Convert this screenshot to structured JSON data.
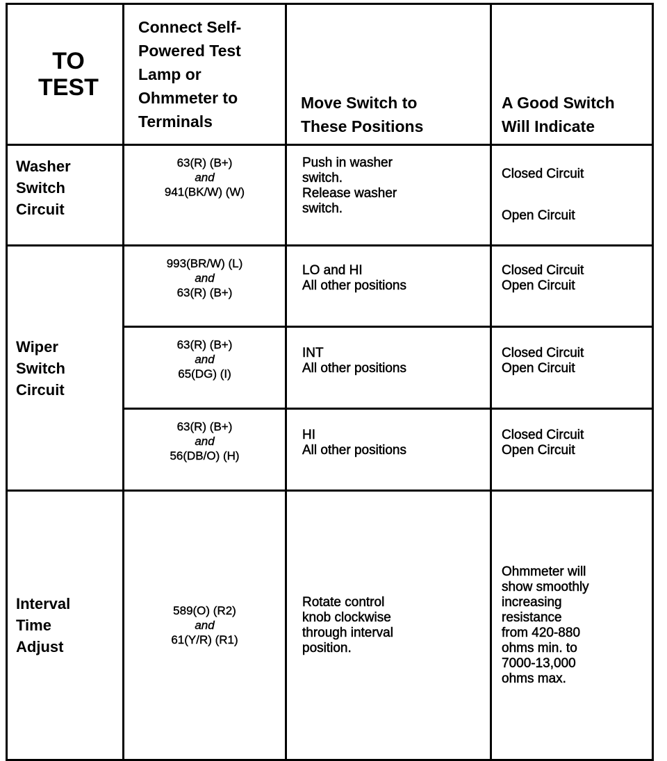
{
  "headers": {
    "test": [
      "TO",
      "TEST"
    ],
    "connect": [
      "Connect Self-",
      "Powered  Test",
      "Lamp or",
      "Ohmmeter to",
      "Terminals"
    ],
    "move": [
      "Move Switch to",
      "These Positions"
    ],
    "indicate": [
      "A Good Switch",
      "Will Indicate"
    ]
  },
  "rows": [
    {
      "label": [
        "Washer",
        "Switch",
        "Circuit"
      ],
      "terminal": [
        "63(R)  (B+)",
        "and",
        "941(BK/W)   (W)"
      ],
      "move": [
        "Push in washer",
        "switch.",
        "Release washer",
        "switch."
      ],
      "indicate": [
        "Closed Circuit",
        "Open Circuit"
      ]
    },
    {
      "label": [
        "Wiper",
        "Switch",
        "Circuit"
      ],
      "terminal": [
        "993(BR/W)  (L)",
        "and",
        "63(R) (B+)"
      ],
      "move": [
        "LO and HI",
        "All other positions"
      ],
      "indicate": [
        "Closed Circuit",
        "Open Circuit"
      ]
    },
    {
      "terminal": [
        "63(R)  (B+)",
        "and",
        "65(DG)  (I)"
      ],
      "move": [
        "INT",
        "All other positions"
      ],
      "indicate": [
        "Closed Circuit",
        "Open Circuit"
      ]
    },
    {
      "terminal": [
        "63(R)  (B+)",
        "and",
        "56(DB/O)  (H)"
      ],
      "move": [
        "HI",
        "All other positions"
      ],
      "indicate": [
        "Closed Circuit",
        "Open Circuit"
      ]
    },
    {
      "label": [
        "Interval",
        "Time",
        "Adjust"
      ],
      "terminal": [
        "589(O)  (R2)",
        "and",
        "61(Y/R)  (R1)"
      ],
      "move": [
        "Rotate control",
        "knob clockwise",
        "through interval",
        "position."
      ],
      "indicate": [
        "Ohmmeter will",
        "show smoothly",
        "increasing",
        "resistance",
        "from 420-880",
        "ohms min. to",
        "7000-13,000",
        "ohms max."
      ]
    }
  ]
}
